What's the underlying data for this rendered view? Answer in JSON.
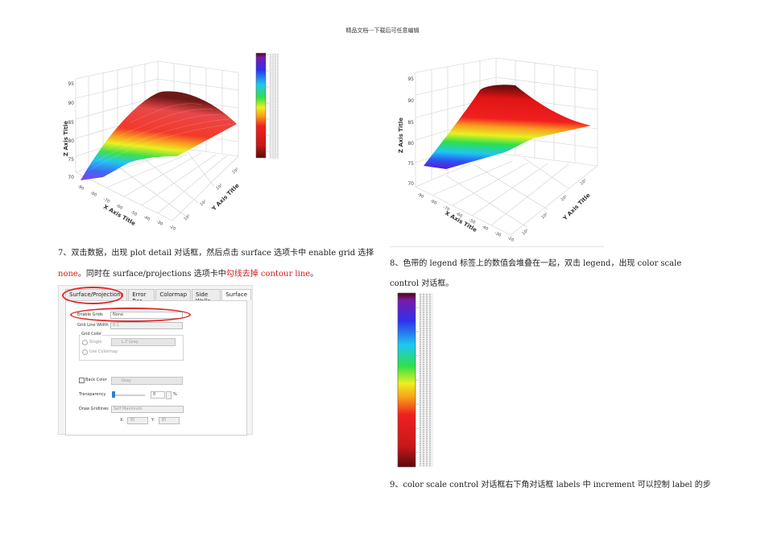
{
  "header": {
    "text": "精品文档---下载后可任意编辑"
  },
  "plot_left": {
    "z_axis_title": "Z Axis Title",
    "x_axis_title": "X Axis Title",
    "y_axis_title": "Y Axis Title",
    "z_ticks": [
      "95",
      "90",
      "85",
      "80",
      "75",
      "70"
    ],
    "x_ticks": [
      "-90",
      "-80",
      "-70",
      "-60",
      "-50",
      "-40",
      "-30",
      "-20"
    ],
    "y_ticks": [
      "10¹",
      "10¹",
      "10¹",
      "10¹"
    ]
  },
  "plot_right": {
    "z_axis_title": "Z Axis Title",
    "x_axis_title": "X Axis Title",
    "y_axis_title": "Y Axis Title",
    "z_ticks": [
      "95",
      "90",
      "85",
      "80",
      "75",
      "70"
    ],
    "x_ticks": [
      "-90",
      "-80",
      "-70",
      "-60",
      "-50",
      "-40",
      "-30",
      "-20"
    ],
    "y_ticks": [
      "10¹",
      "10¹",
      "10¹",
      "10¹"
    ]
  },
  "step7": {
    "line1": "7、双击数据，出现 plot detail 对话框，然后点击 surface 选项卡中 enable grid 选择",
    "line2_red1": "none",
    "line2_mid": "。同时在 surface/projections 选项卡中",
    "line2_red2": "勾线去掉 contour line",
    "line2_end": "。"
  },
  "step8": {
    "line1": "8、色带的 legend 标签上的数值会堆叠在一起，双击 legend，出现 color scale",
    "line2": "control 对话框。"
  },
  "step9": {
    "line1": "9、color scale control 对话框右下角对话框 labels 中 increment 可以控制 label 的步"
  },
  "dialog": {
    "tabs": [
      "Surface/Projections",
      "Error Bar",
      "Colormap",
      "Side Walls",
      "Surface"
    ],
    "active_tab": "Surface",
    "enable_grids_label": "Enable Grids",
    "enable_grids_value": "None",
    "grid_line_width_label": "Grid Line Width",
    "grid_line_width_value": "0.1",
    "grid_color_label": "Grid Color",
    "single_label": "Single",
    "single_color": "L.T Grey",
    "use_colormap_label": "Use Colormap",
    "back_color_label": "Back Color",
    "back_color_value": "Gray",
    "transparency_label": "Transparency",
    "transparency_value": "0",
    "transparency_unit": "%",
    "draw_gridlines_label": "Draw Gridlines",
    "draw_gridlines_value": "Self Maximum",
    "x_label": "X:",
    "x_value": "30",
    "y_label": "Y:",
    "y_value": "30"
  },
  "colors": {
    "accent_red": "#d61a1a",
    "highlight_red": "#e02c2c"
  }
}
